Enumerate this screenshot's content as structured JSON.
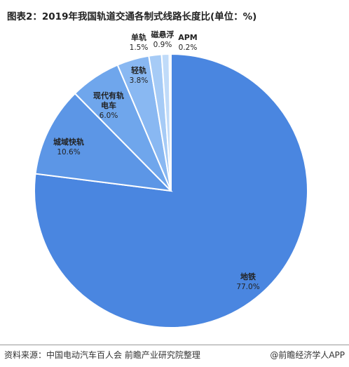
{
  "title": "图表2：2019年我国轨道交通各制式线路长度比(单位：%)",
  "chart_data": {
    "type": "pie",
    "title": "图表2：2019年我国轨道交通各制式线路长度比(单位：%)",
    "unit": "%",
    "slices": [
      {
        "label": "地铁",
        "value": 77.0,
        "value_text": "77.0%",
        "color": "#4a86e0"
      },
      {
        "label": "城域快轨",
        "value": 10.6,
        "value_text": "10.6%",
        "color": "#5c96e6"
      },
      {
        "label": "现代有轨电车",
        "value": 6.0,
        "value_text": "6.0%",
        "color": "#6fa6ec"
      },
      {
        "label": "轻轨",
        "value": 3.8,
        "value_text": "3.8%",
        "color": "#89b8f2"
      },
      {
        "label": "单轨",
        "value": 1.5,
        "value_text": "1.5%",
        "color": "#a6cbf6"
      },
      {
        "label": "磁悬浮",
        "value": 0.9,
        "value_text": "0.9%",
        "color": "#c0dbf9"
      },
      {
        "label": "APM",
        "value": 0.2,
        "value_text": "0.2%",
        "color": "#d8e8fc"
      }
    ]
  },
  "footer": {
    "source": "资料来源：中国电动汽车百人会 前瞻产业研究院整理",
    "brand": "@前瞻经济学人APP"
  }
}
